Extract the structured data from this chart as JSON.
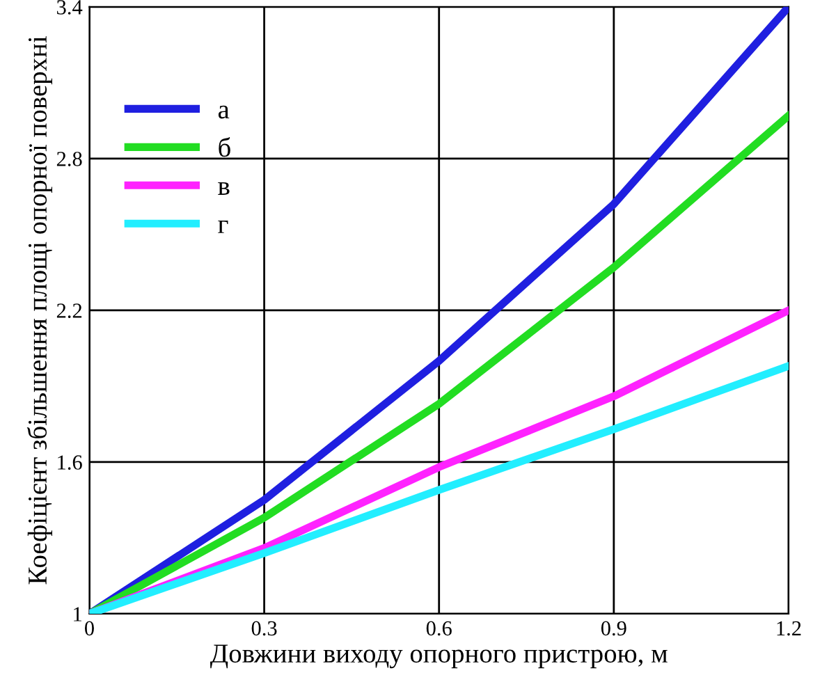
{
  "chart_data": {
    "type": "line",
    "xlabel": "Довжини виходу опорного пристрою, м",
    "ylabel": "Коефіцієнт збільшення площі опорної поверхні",
    "x": [
      0,
      0.3,
      0.6,
      0.9,
      1.2
    ],
    "series": [
      {
        "name": "а",
        "color": "#1f1fe0",
        "values": [
          1,
          1.45,
          2.0,
          2.62,
          3.4
        ]
      },
      {
        "name": "б",
        "color": "#22dd22",
        "values": [
          1,
          1.38,
          1.83,
          2.37,
          2.97
        ]
      },
      {
        "name": "в",
        "color": "#ff22ff",
        "values": [
          1,
          1.26,
          1.58,
          1.86,
          2.2
        ]
      },
      {
        "name": "г",
        "color": "#22eeff",
        "values": [
          1,
          1.24,
          1.49,
          1.73,
          1.98
        ]
      }
    ],
    "xlim": [
      0,
      1.2
    ],
    "ylim": [
      1,
      3.4
    ],
    "xticks": [
      0,
      0.3,
      0.6,
      0.9,
      1.2
    ],
    "yticks": [
      1,
      1.6,
      2.2,
      2.8,
      3.4
    ],
    "grid": true,
    "legend": "top left",
    "line_style": "solid",
    "marker": "none"
  }
}
